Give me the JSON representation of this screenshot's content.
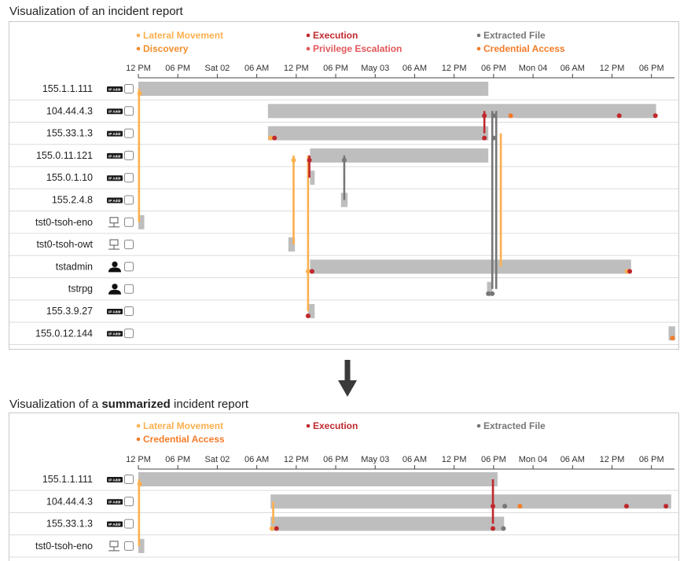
{
  "titles": {
    "top": "Visualization of an incident report",
    "bottom_pre": "Visualization of a ",
    "bottom_bold": "summarized",
    "bottom_post": " incident report"
  },
  "ticks": [
    "12 PM",
    "06 PM",
    "Sat 02",
    "06 AM",
    "12 PM",
    "06 PM",
    "May 03",
    "06 AM",
    "12 PM",
    "06 PM",
    "Mon 04",
    "06 AM",
    "12 PM",
    "06 PM"
  ],
  "icon_tag_text": "IP Addr",
  "categories": {
    "lateral": {
      "label": "Lateral Movement",
      "color": "#fbb04e"
    },
    "discovery": {
      "label": "Discovery",
      "color": "#f28e2c"
    },
    "execution": {
      "label": "Execution",
      "color": "#c0282d"
    },
    "privesc": {
      "label": "Privilege Escalation",
      "color": "#e15759"
    },
    "extracted": {
      "label": "Extracted File",
      "color": "#777777"
    },
    "credential": {
      "label": "Credential Access",
      "color": "#f47b28"
    }
  },
  "top_chart": {
    "legend": [
      {
        "cat": "lateral",
        "col": 0,
        "row": 0
      },
      {
        "cat": "discovery",
        "col": 0,
        "row": 1
      },
      {
        "cat": "execution",
        "col": 1,
        "row": 0
      },
      {
        "cat": "privesc",
        "col": 1,
        "row": 1
      },
      {
        "cat": "extracted",
        "col": 2,
        "row": 0
      },
      {
        "cat": "credential",
        "col": 2,
        "row": 1
      }
    ],
    "rows": [
      {
        "label": "155.1.1.111",
        "icon": "ip"
      },
      {
        "label": "104.44.4.3",
        "icon": "ip"
      },
      {
        "label": "155.33.1.3",
        "icon": "ip"
      },
      {
        "label": "155.0.11.121",
        "icon": "ip"
      },
      {
        "label": "155.0.1.10",
        "icon": "ip"
      },
      {
        "label": "155.2.4.8",
        "icon": "ip"
      },
      {
        "label": "tst0-tsoh-eno",
        "icon": "host"
      },
      {
        "label": "tst0-tsoh-owt",
        "icon": "host"
      },
      {
        "label": "tstadmin",
        "icon": "user"
      },
      {
        "label": "tstrpg",
        "icon": "user"
      },
      {
        "label": "155.3.9.27",
        "icon": "ip"
      },
      {
        "label": "155.0.12.144",
        "icon": "ip"
      }
    ],
    "bars": [
      {
        "row": 0,
        "x0": 0.0,
        "x1": 53.2
      },
      {
        "row": 1,
        "x0": 19.7,
        "x1": 78.7
      },
      {
        "row": 2,
        "x0": 19.7,
        "x1": 53.2
      },
      {
        "row": 3,
        "x0": 26.1,
        "x1": 53.2
      },
      {
        "row": 4,
        "x0": 26.1,
        "x1": 26.8
      },
      {
        "row": 5,
        "x0": 30.8,
        "x1": 31.8
      },
      {
        "row": 6,
        "x0": 0.0,
        "x1": 0.9
      },
      {
        "row": 7,
        "x0": 22.8,
        "x1": 23.8
      },
      {
        "row": 8,
        "x0": 26.1,
        "x1": 74.9
      },
      {
        "row": 9,
        "x0": 53.0,
        "x1": 53.8
      },
      {
        "row": 10,
        "x0": 25.8,
        "x1": 26.8
      },
      {
        "row": 11,
        "x0": 80.6,
        "x1": 81.6
      }
    ],
    "links": [
      {
        "x": 0.1,
        "r1": 0,
        "r2": 6,
        "cat": "lateral"
      },
      {
        "x": 23.6,
        "r1": 3,
        "r2": 7,
        "cat": "lateral"
      },
      {
        "x": 25.8,
        "r1": 3,
        "r2": 10,
        "cat": "lateral"
      },
      {
        "x": 26.0,
        "r1": 3,
        "r2": 4,
        "cat": "execution"
      },
      {
        "x": 31.3,
        "r1": 3,
        "r2": 5,
        "cat": "extracted"
      },
      {
        "x": 52.6,
        "r1": 1,
        "r2": 2,
        "cat": "execution"
      },
      {
        "x": 53.8,
        "r1": 1,
        "r2": 9,
        "cat": "extracted"
      },
      {
        "x": 54.4,
        "r1": 1,
        "r2": 9,
        "cat": "extracted"
      },
      {
        "x": 55.1,
        "r1": 2,
        "r2": 8,
        "cat": "lateral"
      }
    ],
    "dots": [
      {
        "row": 0,
        "x": 0.2,
        "cat": "lateral"
      },
      {
        "row": 1,
        "x": 52.6,
        "cat": "execution"
      },
      {
        "row": 1,
        "x": 54.0,
        "cat": "extracted"
      },
      {
        "row": 1,
        "x": 56.6,
        "cat": "credential"
      },
      {
        "row": 1,
        "x": 73.1,
        "cat": "execution"
      },
      {
        "row": 1,
        "x": 78.6,
        "cat": "execution"
      },
      {
        "row": 2,
        "x": 20.1,
        "cat": "lateral"
      },
      {
        "row": 2,
        "x": 20.7,
        "cat": "execution"
      },
      {
        "row": 2,
        "x": 52.6,
        "cat": "execution"
      },
      {
        "row": 2,
        "x": 54.0,
        "cat": "extracted"
      },
      {
        "row": 3,
        "x": 23.6,
        "cat": "lateral"
      },
      {
        "row": 3,
        "x": 26.0,
        "cat": "execution"
      },
      {
        "row": 3,
        "x": 31.3,
        "cat": "extracted"
      },
      {
        "row": 8,
        "x": 25.8,
        "cat": "lateral"
      },
      {
        "row": 8,
        "x": 26.4,
        "cat": "execution"
      },
      {
        "row": 8,
        "x": 74.3,
        "cat": "lateral"
      },
      {
        "row": 8,
        "x": 74.7,
        "cat": "execution"
      },
      {
        "row": 9,
        "x": 53.2,
        "cat": "extracted"
      },
      {
        "row": 9,
        "x": 53.8,
        "cat": "extracted"
      },
      {
        "row": 10,
        "x": 25.8,
        "cat": "execution"
      },
      {
        "row": 11,
        "x": 81.2,
        "cat": "credential"
      }
    ]
  },
  "bottom_chart": {
    "legend": [
      {
        "cat": "lateral",
        "col": 0,
        "row": 0
      },
      {
        "cat": "credential",
        "col": 0,
        "row": 1
      },
      {
        "cat": "execution",
        "col": 1,
        "row": 0
      },
      {
        "cat": "extracted",
        "col": 2,
        "row": 0
      }
    ],
    "rows": [
      {
        "label": "155.1.1.111",
        "icon": "ip"
      },
      {
        "label": "104.44.4.3",
        "icon": "ip"
      },
      {
        "label": "155.33.1.3",
        "icon": "ip"
      },
      {
        "label": "tst0-tsoh-eno",
        "icon": "host"
      }
    ],
    "bars": [
      {
        "row": 0,
        "x0": 0.0,
        "x1": 54.6
      },
      {
        "row": 1,
        "x0": 20.1,
        "x1": 81.0
      },
      {
        "row": 2,
        "x0": 20.1,
        "x1": 55.6
      },
      {
        "row": 3,
        "x0": 0.0,
        "x1": 0.9
      }
    ],
    "links": [
      {
        "x": 0.1,
        "r1": 0,
        "r2": 3,
        "cat": "lateral"
      },
      {
        "x": 53.9,
        "r1": 0,
        "r2": 2,
        "cat": "execution"
      },
      {
        "x": 20.5,
        "r1": 1,
        "r2": 2,
        "cat": "lateral"
      }
    ],
    "dots": [
      {
        "row": 0,
        "x": 0.2,
        "cat": "lateral"
      },
      {
        "row": 1,
        "x": 53.9,
        "cat": "execution"
      },
      {
        "row": 1,
        "x": 55.7,
        "cat": "extracted"
      },
      {
        "row": 1,
        "x": 58.0,
        "cat": "credential"
      },
      {
        "row": 1,
        "x": 74.2,
        "cat": "execution"
      },
      {
        "row": 1,
        "x": 80.2,
        "cat": "execution"
      },
      {
        "row": 2,
        "x": 20.3,
        "cat": "lateral"
      },
      {
        "row": 2,
        "x": 21.0,
        "cat": "execution"
      },
      {
        "row": 2,
        "x": 53.9,
        "cat": "execution"
      },
      {
        "row": 2,
        "x": 55.5,
        "cat": "extracted"
      }
    ]
  }
}
